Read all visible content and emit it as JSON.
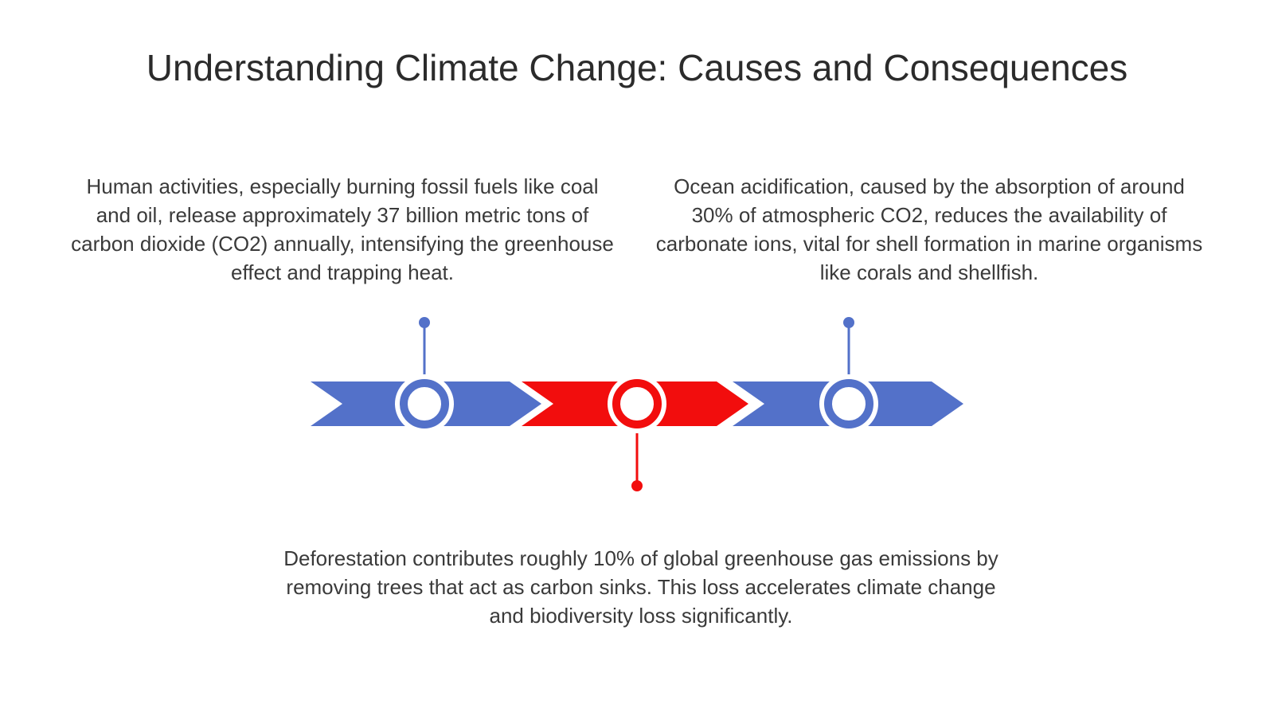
{
  "title": "Understanding Climate Change: Causes and Consequences",
  "items": [
    {
      "text": "Human activities, especially burning fossil fuels like coal and oil, release approximately 37 billion metric tons of carbon dioxide (CO2) annually, intensifying the greenhouse effect and trapping heat."
    },
    {
      "text": "Ocean acidification, caused by the absorption of around 30% of atmospheric CO2, reduces the availability of carbonate ions, vital for shell formation in marine organisms like corals and shellfish."
    },
    {
      "text": "Deforestation contributes roughly 10% of global greenhouse gas emissions by removing trees that act as carbon sinks. This loss accelerates climate change and biodiversity loss significantly."
    }
  ]
}
